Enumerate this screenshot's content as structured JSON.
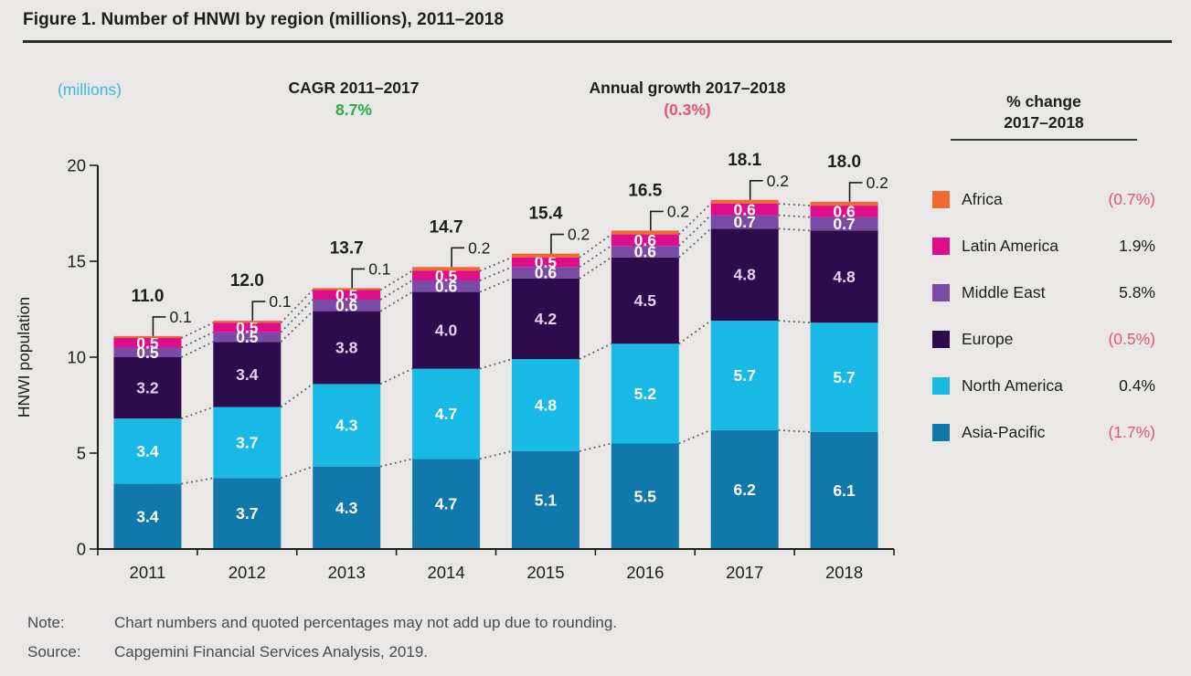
{
  "figure": {
    "title": "Figure 1. Number of HNWI by region (millions), 2011–2018"
  },
  "header": {
    "units_label": "(millions)",
    "cagr_label": "CAGR 2011–2017",
    "cagr_value": "8.7%",
    "growth_label": "Annual growth 2017–2018",
    "growth_value": "(0.3%)"
  },
  "legend": {
    "title_line1": "% change",
    "title_line2": "2017–2018",
    "items": [
      {
        "label": "Africa",
        "change": "(0.7%)",
        "color": "#F0692F"
      },
      {
        "label": "Latin America",
        "change": "1.9%",
        "color": "#DE0D8B"
      },
      {
        "label": "Middle East",
        "change": "5.8%",
        "color": "#7A4BA4"
      },
      {
        "label": "Europe",
        "change": "(0.5%)",
        "color": "#2D0C4E"
      },
      {
        "label": "North America",
        "change": "0.4%",
        "color": "#18BAE5"
      },
      {
        "label": "Asia-Pacific",
        "change": "(1.7%)",
        "color": "#1178AB"
      }
    ]
  },
  "chart_data": {
    "type": "bar",
    "stacked": true,
    "title": "Number of HNWI by region (millions), 2011–2018",
    "xlabel": "",
    "ylabel": "HNWI population",
    "ylim": [
      0,
      20
    ],
    "yticks": [
      0,
      5,
      10,
      15,
      20
    ],
    "grid": false,
    "legend_position": "right",
    "categories": [
      "2011",
      "2012",
      "2013",
      "2014",
      "2015",
      "2016",
      "2017",
      "2018"
    ],
    "series": [
      {
        "name": "Asia-Pacific",
        "color": "#1178AB",
        "label_color": "#FFFFFF",
        "values": [
          3.4,
          3.7,
          4.3,
          4.7,
          5.1,
          5.5,
          6.2,
          6.1
        ]
      },
      {
        "name": "North America",
        "color": "#18BAE5",
        "label_color": "#FFFFFF",
        "values": [
          3.4,
          3.7,
          4.3,
          4.7,
          4.8,
          5.2,
          5.7,
          5.7
        ]
      },
      {
        "name": "Europe",
        "color": "#2D0C4E",
        "label_color": "#E4D0F2",
        "values": [
          3.2,
          3.4,
          3.8,
          4.0,
          4.2,
          4.5,
          4.8,
          4.8
        ]
      },
      {
        "name": "Middle East",
        "color": "#7A4BA4",
        "label_color": "#FFFFFF",
        "values": [
          0.5,
          0.5,
          0.6,
          0.6,
          0.6,
          0.6,
          0.7,
          0.7
        ]
      },
      {
        "name": "Latin America",
        "color": "#DE0D8B",
        "label_color": "#FFFFFF",
        "values": [
          0.5,
          0.5,
          0.5,
          0.5,
          0.5,
          0.6,
          0.6,
          0.6
        ]
      },
      {
        "name": "Africa",
        "color": "#F0692F",
        "label_color": "#1D1D1B",
        "label_style": "callout",
        "values": [
          0.1,
          0.1,
          0.1,
          0.2,
          0.2,
          0.2,
          0.2,
          0.2
        ]
      }
    ],
    "totals": [
      "11.0",
      "12.0",
      "13.7",
      "14.7",
      "15.4",
      "16.5",
      "18.1",
      "18.0"
    ]
  },
  "footer": {
    "note_label": "Note:",
    "note_text": "Chart numbers and quoted percentages may not add up due to rounding.",
    "source_label": "Source:",
    "source_text": "Capgemini Financial Services Analysis, 2019."
  },
  "colors": {
    "background": "#E9E8E6",
    "text": "#1D1D1B",
    "negative": "#E25670",
    "positive_cagr": "#2BAA44",
    "units": "#3EB8DC",
    "connector": "#59595B",
    "footer_text": "#4A4A4C"
  }
}
